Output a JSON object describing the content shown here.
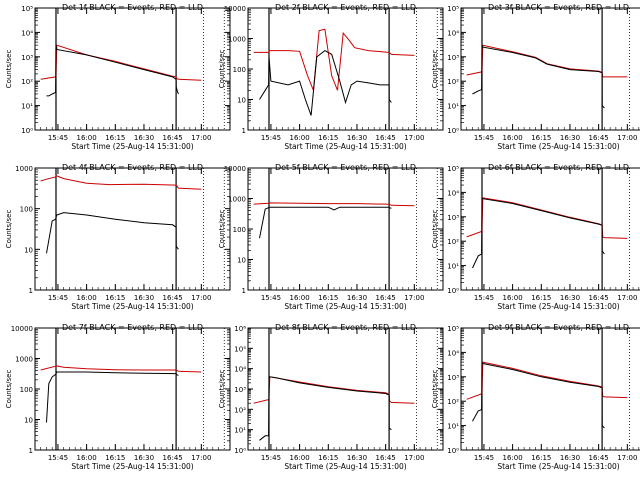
{
  "figure": {
    "xlabel": "Start Time (25-Aug-14 15:31:00)",
    "ylabel": "Counts/sec",
    "x_ticks": [
      "15:45",
      "16:00",
      "16:15",
      "16:30",
      "16:45",
      "17:00"
    ],
    "colors": {
      "events": "#000000",
      "lld": "#cc0000"
    }
  },
  "chart_data": [
    {
      "type": "line",
      "title": "Det 1f BLACK = Events, RED = LLD",
      "ylim": [
        1,
        100000
      ],
      "log": true,
      "ylabels": [
        "10⁰",
        "10¹",
        "10²",
        "10³",
        "10⁴",
        "10⁵"
      ],
      "events": {
        "t": [
          15.65,
          15.67,
          15.7,
          15.73,
          15.733,
          15.74,
          16.0,
          16.25,
          16.5,
          16.75,
          16.78,
          16.781,
          16.79,
          16.8
        ],
        "v": [
          25,
          25,
          30,
          35,
          3000,
          2000,
          1200,
          600,
          300,
          150,
          120,
          60,
          40,
          30
        ]
      },
      "lld": {
        "t": [
          15.6,
          15.73,
          15.733,
          15.74,
          16.0,
          16.25,
          16.5,
          16.75,
          16.78,
          16.785,
          16.8,
          17.0
        ],
        "v": [
          120,
          150,
          160,
          3000,
          1200,
          650,
          320,
          160,
          150,
          130,
          120,
          110
        ]
      }
    },
    {
      "type": "line",
      "title": "Det 2f BLACK = Events, RED = LLD",
      "ylim": [
        1,
        10000
      ],
      "log": true,
      "ylabels": [
        "1",
        "10",
        "100",
        "1000",
        "10000"
      ],
      "events": {
        "t": [
          15.65,
          15.7,
          15.73,
          15.733,
          15.75,
          15.9,
          16.0,
          16.05,
          16.1,
          16.15,
          16.22,
          16.28,
          16.35,
          16.4,
          16.45,
          16.5,
          16.6,
          16.7,
          16.78,
          16.781,
          16.8
        ],
        "v": [
          10,
          20,
          30,
          250,
          40,
          30,
          40,
          10,
          3,
          250,
          400,
          300,
          40,
          8,
          30,
          40,
          35,
          30,
          30,
          10,
          8
        ]
      },
      "lld": {
        "t": [
          15.6,
          15.73,
          15.733,
          15.9,
          16.0,
          16.07,
          16.12,
          16.17,
          16.22,
          16.28,
          16.33,
          16.38,
          16.43,
          16.48,
          16.6,
          16.78,
          16.8,
          17.0
        ],
        "v": [
          350,
          350,
          400,
          400,
          380,
          60,
          20,
          1800,
          2000,
          60,
          20,
          1500,
          900,
          500,
          400,
          350,
          300,
          280
        ]
      }
    },
    {
      "type": "line",
      "title": "Det 3f BLACK = Events, RED = LLD",
      "ylim": [
        1,
        100000
      ],
      "log": true,
      "ylabels": [
        "10⁰",
        "10¹",
        "10²",
        "10³",
        "10⁴",
        "10⁵"
      ],
      "events": {
        "t": [
          15.65,
          15.7,
          15.73,
          15.733,
          15.74,
          16.0,
          16.2,
          16.3,
          16.5,
          16.75,
          16.78,
          16.781,
          16.8
        ],
        "v": [
          30,
          40,
          45,
          3000,
          2500,
          1500,
          900,
          500,
          300,
          250,
          220,
          10,
          8
        ]
      },
      "lld": {
        "t": [
          15.6,
          15.73,
          15.733,
          15.74,
          16.0,
          16.2,
          16.3,
          16.5,
          16.75,
          16.78,
          16.785,
          16.8,
          17.0
        ],
        "v": [
          180,
          240,
          260,
          3000,
          1600,
          950,
          520,
          320,
          260,
          230,
          150,
          150,
          150
        ]
      }
    },
    {
      "type": "line",
      "title": "Det 4f BLACK = Events, RED = LLD",
      "ylim": [
        1,
        1000
      ],
      "log": true,
      "ylabels": [
        "1",
        "10",
        "100",
        "1000"
      ],
      "events": {
        "t": [
          15.65,
          15.7,
          15.73,
          15.733,
          15.74,
          15.8,
          16.0,
          16.25,
          16.5,
          16.75,
          16.78,
          16.781,
          16.8
        ],
        "v": [
          8,
          50,
          55,
          60,
          70,
          80,
          70,
          55,
          45,
          40,
          35,
          12,
          10
        ]
      },
      "lld": {
        "t": [
          15.6,
          15.65,
          15.73,
          15.733,
          15.8,
          16.0,
          16.2,
          16.5,
          16.78,
          16.8,
          17.0
        ],
        "v": [
          480,
          530,
          600,
          650,
          550,
          420,
          390,
          400,
          380,
          320,
          300
        ]
      }
    },
    {
      "type": "line",
      "title": "Det 5f BLACK = Events, RED = LLD",
      "ylim": [
        1,
        10000
      ],
      "log": true,
      "ylabels": [
        "1",
        "10",
        "100",
        "1000",
        "10000"
      ],
      "events": {
        "t": [
          15.65,
          15.7,
          15.73,
          15.733,
          15.74,
          16.0,
          16.25,
          16.3,
          16.35,
          16.5,
          16.78,
          16.781,
          16.8
        ],
        "v": [
          50,
          450,
          500,
          520,
          520,
          520,
          520,
          420,
          520,
          520,
          520,
          500,
          480
        ]
      },
      "lld": {
        "t": [
          15.6,
          15.73,
          15.733,
          16.0,
          16.25,
          16.5,
          16.78,
          16.8,
          17.0
        ],
        "v": [
          650,
          700,
          720,
          700,
          680,
          680,
          650,
          600,
          580
        ]
      }
    },
    {
      "type": "line",
      "title": "Det 6f BLACK = Events, RED = LLD",
      "ylim": [
        1,
        100000
      ],
      "log": true,
      "ylabels": [
        "10⁰",
        "10¹",
        "10²",
        "10³",
        "10⁴",
        "10⁵"
      ],
      "events": {
        "t": [
          15.65,
          15.7,
          15.73,
          15.733,
          15.74,
          16.0,
          16.25,
          16.5,
          16.75,
          16.78,
          16.781,
          16.8
        ],
        "v": [
          8,
          25,
          30,
          6000,
          5500,
          3500,
          1800,
          900,
          500,
          450,
          40,
          30
        ]
      },
      "lld": {
        "t": [
          15.6,
          15.73,
          15.733,
          15.74,
          16.0,
          16.25,
          16.5,
          16.75,
          16.78,
          16.785,
          16.8,
          17.0
        ],
        "v": [
          150,
          250,
          280,
          6000,
          3800,
          1900,
          950,
          520,
          460,
          150,
          140,
          130
        ]
      }
    },
    {
      "type": "line",
      "title": "Det 7f BLACK = Events, RED = LLD",
      "ylim": [
        1,
        10000
      ],
      "log": true,
      "ylabels": [
        "1",
        "10",
        "100",
        "1000",
        "10000"
      ],
      "events": {
        "t": [
          15.65,
          15.67,
          15.7,
          15.73,
          15.733,
          15.74,
          16.0,
          16.25,
          16.5,
          16.78,
          16.781,
          16.8
        ],
        "v": [
          8,
          150,
          250,
          300,
          320,
          360,
          360,
          340,
          330,
          320,
          300,
          280
        ]
      },
      "lld": {
        "t": [
          15.6,
          15.73,
          15.733,
          15.8,
          16.0,
          16.25,
          16.5,
          16.78,
          16.8,
          17.0
        ],
        "v": [
          420,
          560,
          580,
          520,
          460,
          430,
          420,
          420,
          380,
          360
        ]
      }
    },
    {
      "type": "line",
      "title": "Det 8f BLACK = Events, RED = LLD",
      "ylim": [
        1,
        1000000
      ],
      "log": true,
      "ylabels": [
        "10⁰",
        "10¹",
        "10²",
        "10³",
        "10⁴",
        "10⁵",
        "10⁶"
      ],
      "events": {
        "t": [
          15.65,
          15.7,
          15.73,
          15.733,
          15.74,
          15.8,
          16.0,
          16.25,
          16.5,
          16.75,
          16.78,
          16.781,
          16.8
        ],
        "v": [
          3,
          5,
          5,
          3000,
          4000,
          3500,
          2000,
          1200,
          800,
          600,
          500,
          12,
          10
        ]
      },
      "lld": {
        "t": [
          15.6,
          15.73,
          15.733,
          15.74,
          16.0,
          16.25,
          16.5,
          16.75,
          16.78,
          16.785,
          16.8,
          17.0
        ],
        "v": [
          200,
          300,
          320,
          4000,
          2200,
          1300,
          850,
          650,
          550,
          250,
          220,
          200
        ]
      }
    },
    {
      "type": "line",
      "title": "Det 9f BLACK = Events, RED = LLD",
      "ylim": [
        1,
        100000
      ],
      "log": true,
      "ylabels": [
        "10⁰",
        "10¹",
        "10²",
        "10³",
        "10⁴",
        "10⁵"
      ],
      "events": {
        "t": [
          15.65,
          15.7,
          15.73,
          15.733,
          15.74,
          16.0,
          16.25,
          16.5,
          16.75,
          16.78,
          16.781,
          16.8
        ],
        "v": [
          15,
          40,
          45,
          4000,
          3500,
          2000,
          1000,
          600,
          400,
          350,
          10,
          8
        ]
      },
      "lld": {
        "t": [
          15.6,
          15.73,
          15.733,
          15.74,
          16.0,
          16.25,
          16.5,
          16.75,
          16.78,
          16.785,
          16.8,
          17.0
        ],
        "v": [
          120,
          200,
          220,
          4000,
          2200,
          1100,
          650,
          420,
          380,
          160,
          150,
          140
        ]
      }
    }
  ]
}
